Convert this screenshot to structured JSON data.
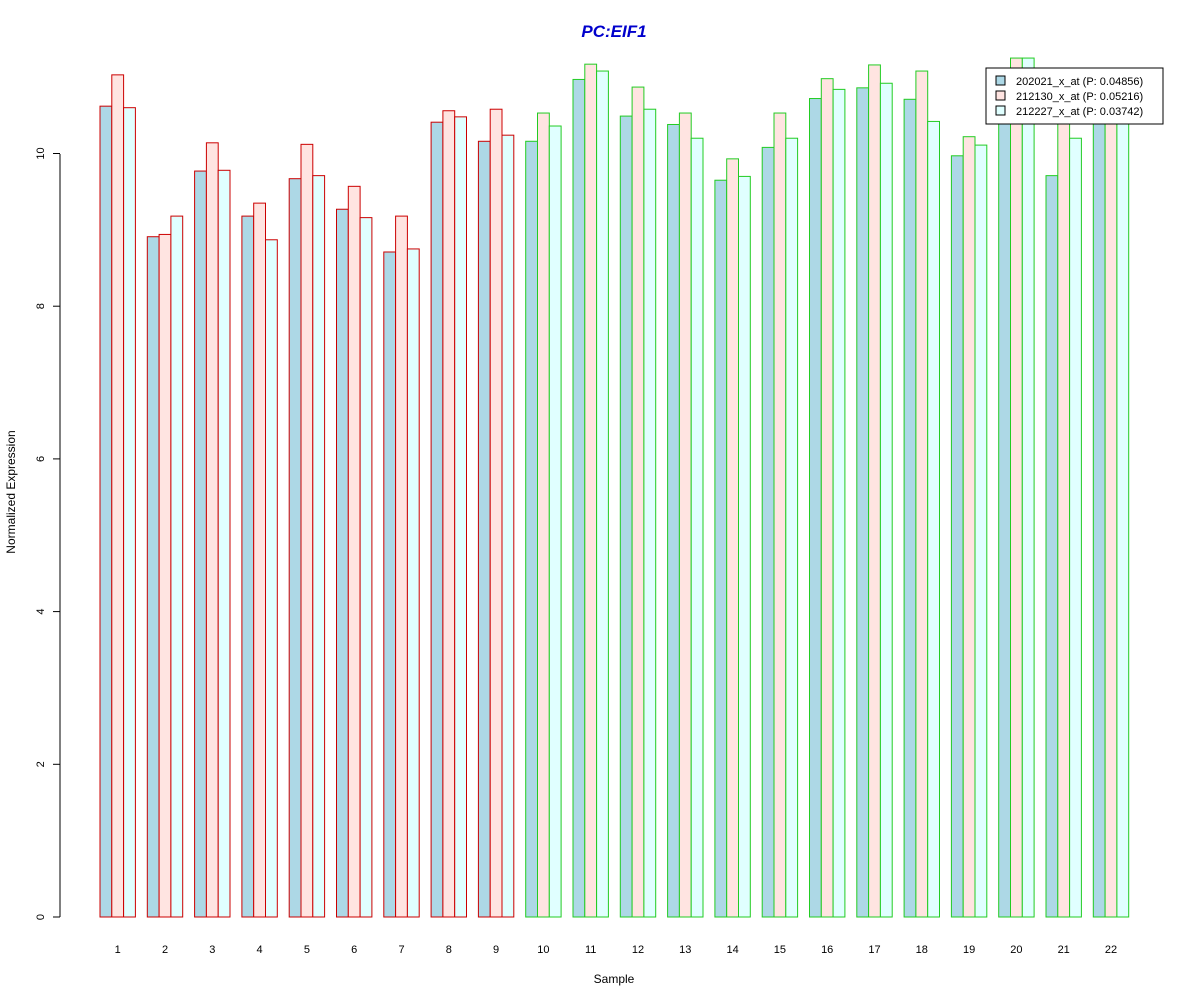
{
  "chart_data": {
    "type": "bar",
    "title": "PC:EIF1",
    "xlabel": "Sample",
    "ylabel": "Normalized Expression",
    "ylim": [
      0,
      11.3
    ],
    "yticks": [
      0,
      2,
      4,
      6,
      8,
      10
    ],
    "grid": false,
    "legend_position": "top-right",
    "categories": [
      "1",
      "2",
      "3",
      "4",
      "5",
      "6",
      "7",
      "8",
      "9",
      "10",
      "11",
      "12",
      "13",
      "14",
      "15",
      "16",
      "17",
      "18",
      "19",
      "20",
      "21",
      "22"
    ],
    "group_outline_colors": [
      "#cc0000",
      "#cc0000",
      "#cc0000",
      "#cc0000",
      "#cc0000",
      "#cc0000",
      "#cc0000",
      "#cc0000",
      "#cc0000",
      "#22cc22",
      "#22cc22",
      "#22cc22",
      "#22cc22",
      "#22cc22",
      "#22cc22",
      "#22cc22",
      "#22cc22",
      "#22cc22",
      "#22cc22",
      "#22cc22",
      "#22cc22",
      "#22cc22"
    ],
    "series": [
      {
        "name": "202021_x_at (P: 0.04856)",
        "fill": "#add8e6",
        "values": [
          10.62,
          8.91,
          9.77,
          9.18,
          9.67,
          9.27,
          8.71,
          10.41,
          10.16,
          10.16,
          10.97,
          10.49,
          10.38,
          9.65,
          10.08,
          10.72,
          10.86,
          10.71,
          9.97,
          11.1,
          9.71,
          11.1
        ]
      },
      {
        "name": "212130_x_at (P: 0.05216)",
        "fill": "#ffe4e1",
        "values": [
          11.03,
          8.94,
          10.14,
          9.35,
          10.12,
          9.57,
          9.18,
          10.56,
          10.58,
          10.53,
          11.17,
          10.87,
          10.53,
          9.93,
          10.53,
          10.98,
          11.16,
          11.08,
          10.22,
          11.25,
          11.1,
          11.1
        ]
      },
      {
        "name": "212227_x_at (P: 0.03742)",
        "fill": "#e0ffff",
        "values": [
          10.6,
          9.18,
          9.78,
          8.87,
          9.71,
          9.16,
          8.75,
          10.48,
          10.24,
          10.36,
          11.08,
          10.58,
          10.2,
          9.7,
          10.2,
          10.84,
          10.92,
          10.42,
          10.11,
          11.25,
          10.2,
          11.1
        ]
      }
    ]
  }
}
